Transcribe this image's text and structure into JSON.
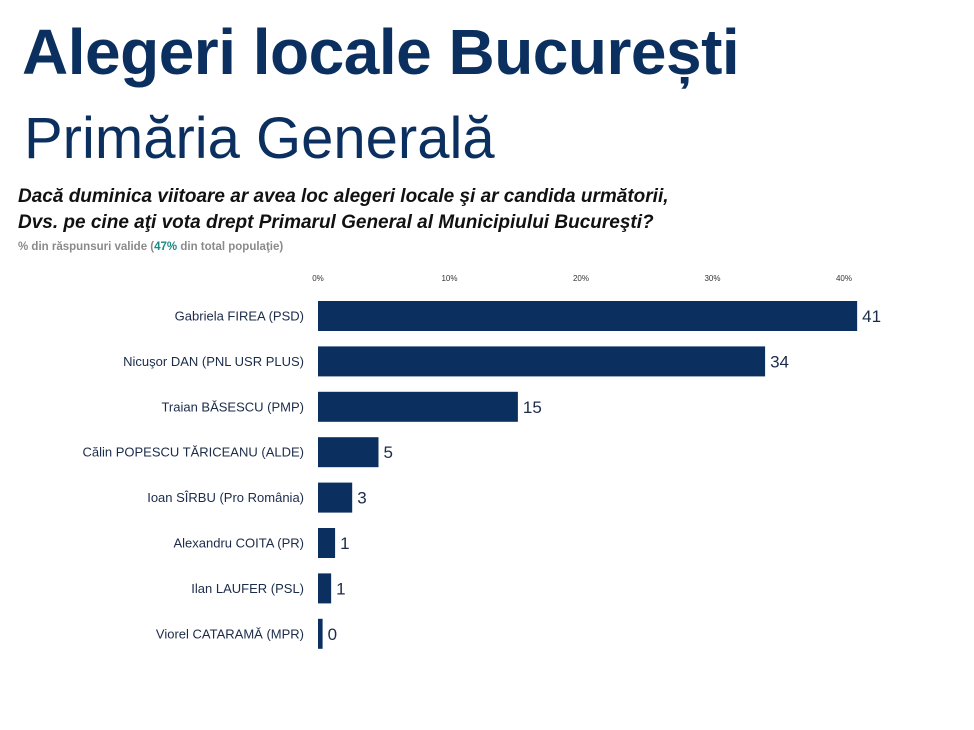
{
  "header": {
    "title": "Alegeri locale București",
    "subtitle": "Primăria Generală"
  },
  "question": {
    "line1": "Dacă duminica viitoare ar avea loc alegeri locale şi ar candida următorii,",
    "line2": "Dvs. pe cine aţi vota drept Primarul General al Municipiului Bucureşti?"
  },
  "note": {
    "prefix": "% din răspunsuri valide (",
    "highlight": "47%",
    "suffix": " din total populaţie)",
    "highlight_color": "#1a8a86"
  },
  "chart_data": {
    "type": "bar",
    "orientation": "horizontal",
    "categories": [
      "Gabriela FIREA (PSD)",
      "Nicuşor DAN (PNL USR PLUS)",
      "Traian BĂSESCU (PMP)",
      "Călin POPESCU TĂRICEANU (ALDE)",
      "Ioan SÎRBU (Pro România)",
      "Alexandru COITA (PR)",
      "Ilan LAUFER (PSL)",
      "Viorel CATARAMĂ (MPR)"
    ],
    "values": [
      41,
      34,
      15,
      5,
      3,
      1,
      1,
      0
    ],
    "value_labels": [
      "41",
      "34",
      "15",
      "5",
      "3",
      "1",
      "1",
      "0"
    ],
    "plotted_values": [
      41,
      34,
      15.2,
      4.6,
      2.6,
      1.3,
      1.0,
      0.35
    ],
    "xlim": [
      0,
      45
    ],
    "x_ticks": [
      0,
      10,
      20,
      30,
      40
    ],
    "x_tick_labels": [
      "0%",
      "10%",
      "20%",
      "30%",
      "40%"
    ],
    "axis_position": "top",
    "grid": false,
    "legend": "none",
    "bar_color": "#0b2f5e"
  }
}
